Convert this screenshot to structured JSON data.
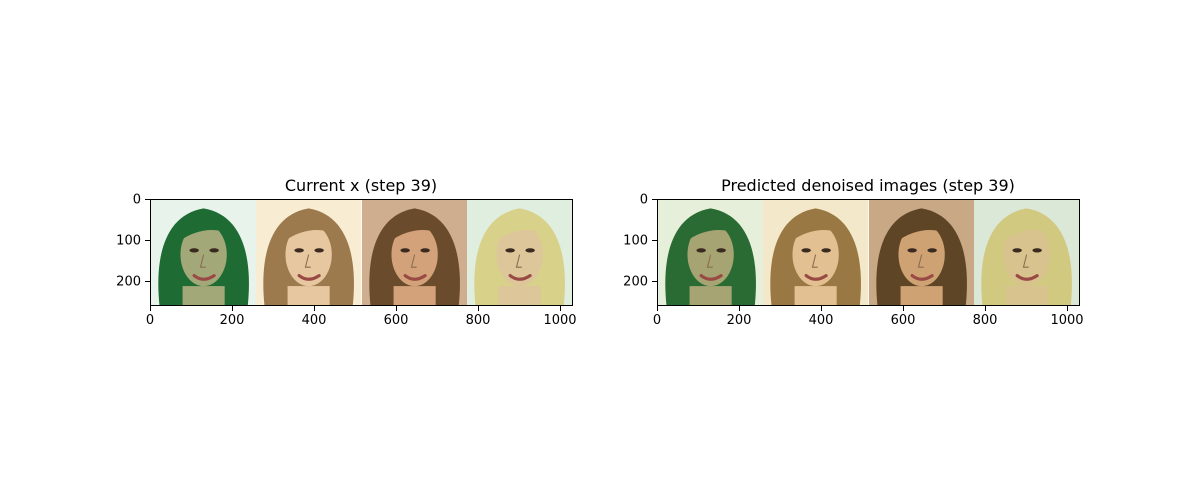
{
  "panels": [
    {
      "title": "Current x (step 39)",
      "y_ticks": [
        "0",
        "100",
        "200"
      ],
      "x_ticks": [
        "0",
        "200",
        "400",
        "600",
        "800",
        "1000"
      ],
      "images": [
        {
          "hair": "#1f6b34",
          "bg": "#e8f3ec",
          "skin": "#a3a878"
        },
        {
          "hair": "#9c7a4e",
          "bg": "#f8ecd3",
          "skin": "#e7c7a0"
        },
        {
          "hair": "#6a4b2c",
          "bg": "#cfae8f",
          "skin": "#d3a27a"
        },
        {
          "hair": "#d8d18a",
          "bg": "#dfeede",
          "skin": "#dcc69a"
        }
      ]
    },
    {
      "title": "Predicted denoised images (step 39)",
      "y_ticks": [
        "0",
        "100",
        "200"
      ],
      "x_ticks": [
        "0",
        "200",
        "400",
        "600",
        "800",
        "1000"
      ],
      "images": [
        {
          "hair": "#2a6a33",
          "bg": "#e6efd9",
          "skin": "#a7a474"
        },
        {
          "hair": "#9a7844",
          "bg": "#f3e8c9",
          "skin": "#e2c091"
        },
        {
          "hair": "#5e4525",
          "bg": "#c9a886",
          "skin": "#cfa274"
        },
        {
          "hair": "#d2c981",
          "bg": "#dbe8d7",
          "skin": "#d8c38f"
        }
      ]
    }
  ]
}
